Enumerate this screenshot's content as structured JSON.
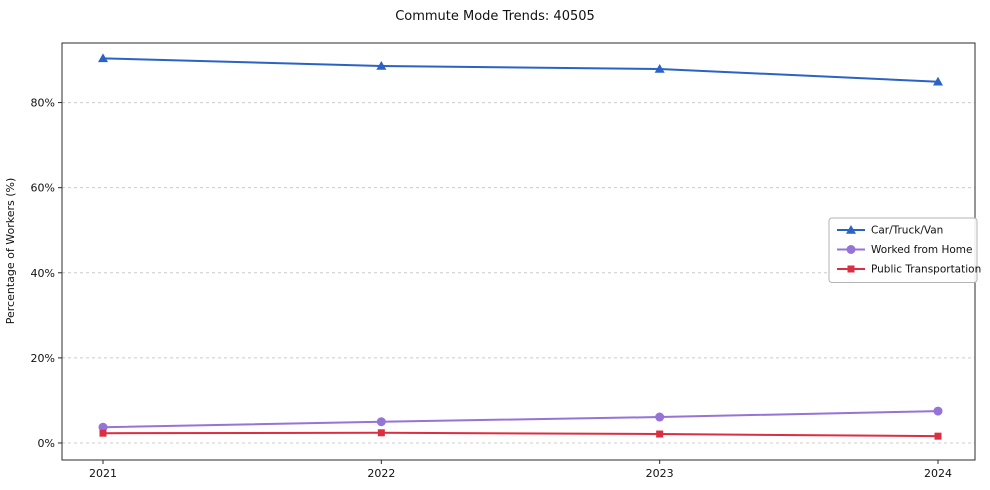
{
  "title": "Commute Mode Trends: 40505",
  "chart_data": {
    "type": "line",
    "title": "Commute Mode Trends: 40505",
    "xlabel": "",
    "ylabel": "Percentage of Workers (%)",
    "x": [
      "2021",
      "2022",
      "2023",
      "2024"
    ],
    "series": [
      {
        "name": "Car/Truck/Van",
        "color": "#2b62c5",
        "marker": "triangle",
        "values": [
          90.4,
          88.6,
          87.9,
          84.9
        ]
      },
      {
        "name": "Worked from Home",
        "color": "#9673d6",
        "marker": "circle",
        "values": [
          3.7,
          5.0,
          6.1,
          7.5
        ]
      },
      {
        "name": "Public Transportation",
        "color": "#dc2e41",
        "marker": "square",
        "values": [
          2.3,
          2.4,
          2.1,
          1.6
        ]
      }
    ],
    "ylim": [
      -4,
      94
    ],
    "yticks": [
      0,
      20,
      40,
      60,
      80
    ],
    "ytick_suffix": "%",
    "grid": true,
    "legend_position": "center right"
  }
}
